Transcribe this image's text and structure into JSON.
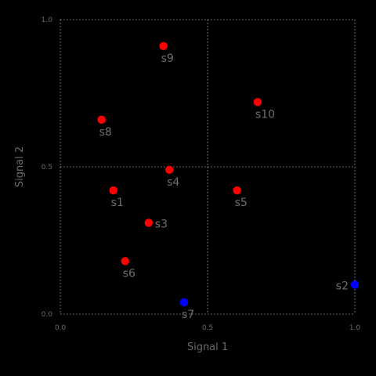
{
  "chart_data": {
    "type": "scatter",
    "xlabel": "Signal 1",
    "ylabel": "Signal 2",
    "xlim": [
      0,
      1
    ],
    "ylim": [
      0,
      1
    ],
    "xticks": [
      "0.0",
      "0.5",
      "1.0"
    ],
    "yticks": [
      "0.0",
      "0.5",
      "1.0"
    ],
    "grid": true,
    "colors": {
      "red": "#ff0000",
      "blue": "#0000ff",
      "label": "#6e6e6e",
      "grid": "#bbbbbb",
      "background": "#000000"
    },
    "points": [
      {
        "label": "s1",
        "x": 0.18,
        "y": 0.42,
        "color": "#ff0000",
        "label_pos": "below"
      },
      {
        "label": "s2",
        "x": 1.0,
        "y": 0.1,
        "color": "#0000ff",
        "label_pos": "left"
      },
      {
        "label": "s3",
        "x": 0.3,
        "y": 0.31,
        "color": "#ff0000",
        "label_pos": "right"
      },
      {
        "label": "s4",
        "x": 0.37,
        "y": 0.49,
        "color": "#ff0000",
        "label_pos": "below"
      },
      {
        "label": "s5",
        "x": 0.6,
        "y": 0.42,
        "color": "#ff0000",
        "label_pos": "below"
      },
      {
        "label": "s6",
        "x": 0.22,
        "y": 0.18,
        "color": "#ff0000",
        "label_pos": "below"
      },
      {
        "label": "s7",
        "x": 0.42,
        "y": 0.04,
        "color": "#0000ff",
        "label_pos": "below"
      },
      {
        "label": "s8",
        "x": 0.14,
        "y": 0.66,
        "color": "#ff0000",
        "label_pos": "below"
      },
      {
        "label": "s9",
        "x": 0.35,
        "y": 0.91,
        "color": "#ff0000",
        "label_pos": "below"
      },
      {
        "label": "s10",
        "x": 0.67,
        "y": 0.72,
        "color": "#ff0000",
        "label_pos": "below"
      }
    ]
  }
}
